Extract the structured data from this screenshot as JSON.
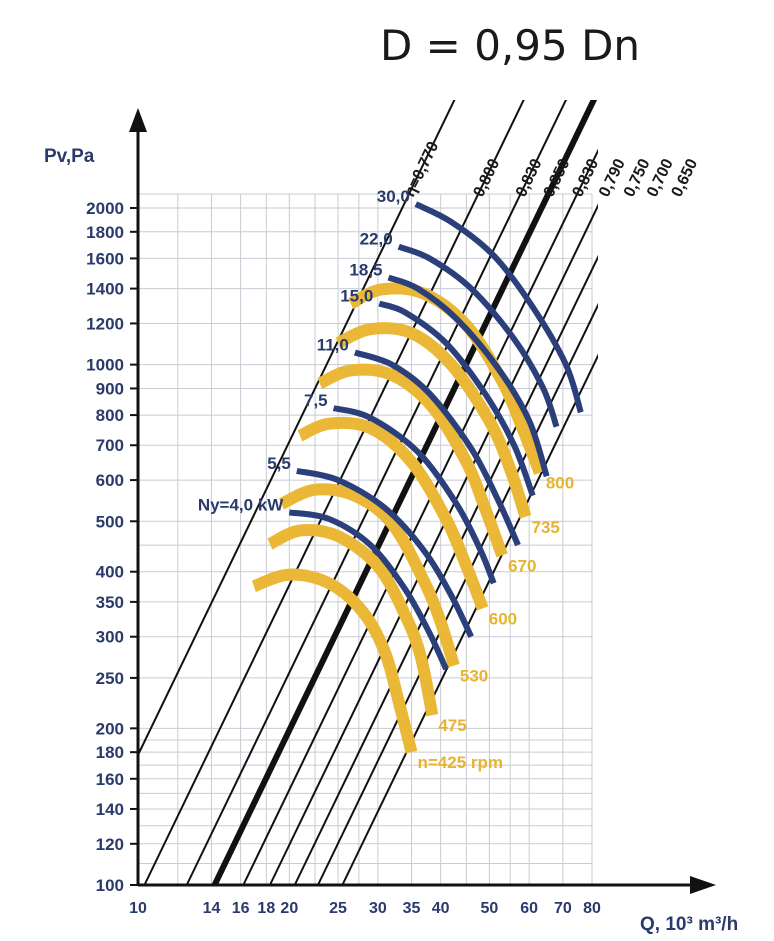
{
  "chart_data": {
    "type": "line",
    "title": "D = 0,95 Dn",
    "xlabel": "Q, 10³ m³/h",
    "ylabel": "Pv,Pa",
    "x_scale": "log",
    "y_scale": "log",
    "xlim": [
      10,
      80
    ],
    "ylim": [
      100,
      2000
    ],
    "x_ticks": [
      "10",
      "14",
      "16",
      "18",
      "20",
      "25",
      "30",
      "35",
      "40",
      "50",
      "60",
      "70",
      "80"
    ],
    "y_ticks": [
      "100",
      "120",
      "140",
      "160",
      "180",
      "200",
      "250",
      "300",
      "350",
      "400",
      "500",
      "600",
      "700",
      "800",
      "900",
      "1000",
      "1200",
      "1400",
      "1600",
      "1800",
      "2000"
    ],
    "efficiency_lines": [
      {
        "label": "η=0,770",
        "x_at_ymin": 7.5
      },
      {
        "label": "0,800",
        "x_at_ymin": 10.3
      },
      {
        "label": "0,830",
        "x_at_ymin": 12.5
      },
      {
        "label": "0,850",
        "x_at_ymin": 14.2,
        "bold": true
      },
      {
        "label": "0,830",
        "x_at_ymin": 16.2
      },
      {
        "label": "0,790",
        "x_at_ymin": 18.3
      },
      {
        "label": "0,750",
        "x_at_ymin": 20.5
      },
      {
        "label": "0,700",
        "x_at_ymin": 22.8
      },
      {
        "label": "0,650",
        "x_at_ymin": 25.5
      }
    ],
    "speed_series": [
      {
        "name": "n=425 rpm",
        "points": [
          [
            17,
            375
          ],
          [
            20,
            395
          ],
          [
            24,
            380
          ],
          [
            28,
            335
          ],
          [
            31,
            280
          ],
          [
            33,
            225
          ],
          [
            35,
            180
          ]
        ]
      },
      {
        "name": "475",
        "points": [
          [
            18.3,
            452
          ],
          [
            21,
            480
          ],
          [
            25,
            468
          ],
          [
            30,
            410
          ],
          [
            34,
            330
          ],
          [
            36.5,
            275
          ],
          [
            38.5,
            212
          ]
        ]
      },
      {
        "name": "530",
        "points": [
          [
            19.3,
            540
          ],
          [
            22.5,
            575
          ],
          [
            27,
            560
          ],
          [
            32,
            495
          ],
          [
            37,
            385
          ],
          [
            40,
            320
          ],
          [
            42.5,
            264
          ]
        ]
      },
      {
        "name": "600",
        "points": [
          [
            21,
            730
          ],
          [
            24,
            770
          ],
          [
            29,
            755
          ],
          [
            35,
            650
          ],
          [
            41,
            505
          ],
          [
            45,
            410
          ],
          [
            48.5,
            340
          ]
        ]
      },
      {
        "name": "670",
        "points": [
          [
            23,
            920
          ],
          [
            26.5,
            975
          ],
          [
            32,
            955
          ],
          [
            38.5,
            830
          ],
          [
            45,
            650
          ],
          [
            49,
            530
          ],
          [
            53,
            430
          ]
        ]
      },
      {
        "name": "735",
        "points": [
          [
            25,
            1100
          ],
          [
            29,
            1170
          ],
          [
            35,
            1150
          ],
          [
            42,
            1000
          ],
          [
            50,
            780
          ],
          [
            55,
            630
          ],
          [
            59,
            510
          ]
        ]
      },
      {
        "name": "800",
        "points": [
          [
            26.5,
            1310
          ],
          [
            30.5,
            1395
          ],
          [
            37,
            1370
          ],
          [
            45,
            1190
          ],
          [
            53,
            930
          ],
          [
            58,
            760
          ],
          [
            63,
            620
          ]
        ]
      }
    ],
    "power_series": [
      {
        "name": "Ny=4,0 kW",
        "points": [
          [
            20,
            520
          ],
          [
            24,
            505
          ],
          [
            29,
            450
          ],
          [
            34,
            370
          ],
          [
            38,
            305
          ],
          [
            41,
            260
          ]
        ]
      },
      {
        "name": "5,5",
        "points": [
          [
            20.7,
            625
          ],
          [
            25,
            600
          ],
          [
            31,
            530
          ],
          [
            37,
            440
          ],
          [
            42,
            360
          ],
          [
            46,
            300
          ]
        ]
      },
      {
        "name": "7,5",
        "points": [
          [
            24.5,
            825
          ],
          [
            29,
            790
          ],
          [
            36,
            680
          ],
          [
            43,
            540
          ],
          [
            48,
            440
          ],
          [
            51,
            380
          ]
        ]
      },
      {
        "name": "11,0",
        "points": [
          [
            27,
            1055
          ],
          [
            32,
            1000
          ],
          [
            38,
            880
          ],
          [
            46,
            690
          ],
          [
            52,
            550
          ],
          [
            57,
            450
          ]
        ]
      },
      {
        "name": "15,0",
        "points": [
          [
            30.2,
            1310
          ],
          [
            34,
            1260
          ],
          [
            41,
            1100
          ],
          [
            49,
            880
          ],
          [
            56,
            700
          ],
          [
            61,
            560
          ]
        ]
      },
      {
        "name": "18,5",
        "points": [
          [
            31.5,
            1470
          ],
          [
            36,
            1400
          ],
          [
            43,
            1225
          ],
          [
            52,
            985
          ],
          [
            60,
            780
          ],
          [
            65,
            610
          ]
        ]
      },
      {
        "name": "22,0",
        "points": [
          [
            33,
            1685
          ],
          [
            38,
            1600
          ],
          [
            46,
            1400
          ],
          [
            56,
            1120
          ],
          [
            64,
            900
          ],
          [
            68,
            760
          ]
        ]
      },
      {
        "name": "30,0",
        "points": [
          [
            35.7,
            2035
          ],
          [
            42,
            1880
          ],
          [
            51,
            1620
          ],
          [
            61,
            1290
          ],
          [
            71,
            1000
          ],
          [
            76,
            810
          ]
        ]
      }
    ]
  }
}
